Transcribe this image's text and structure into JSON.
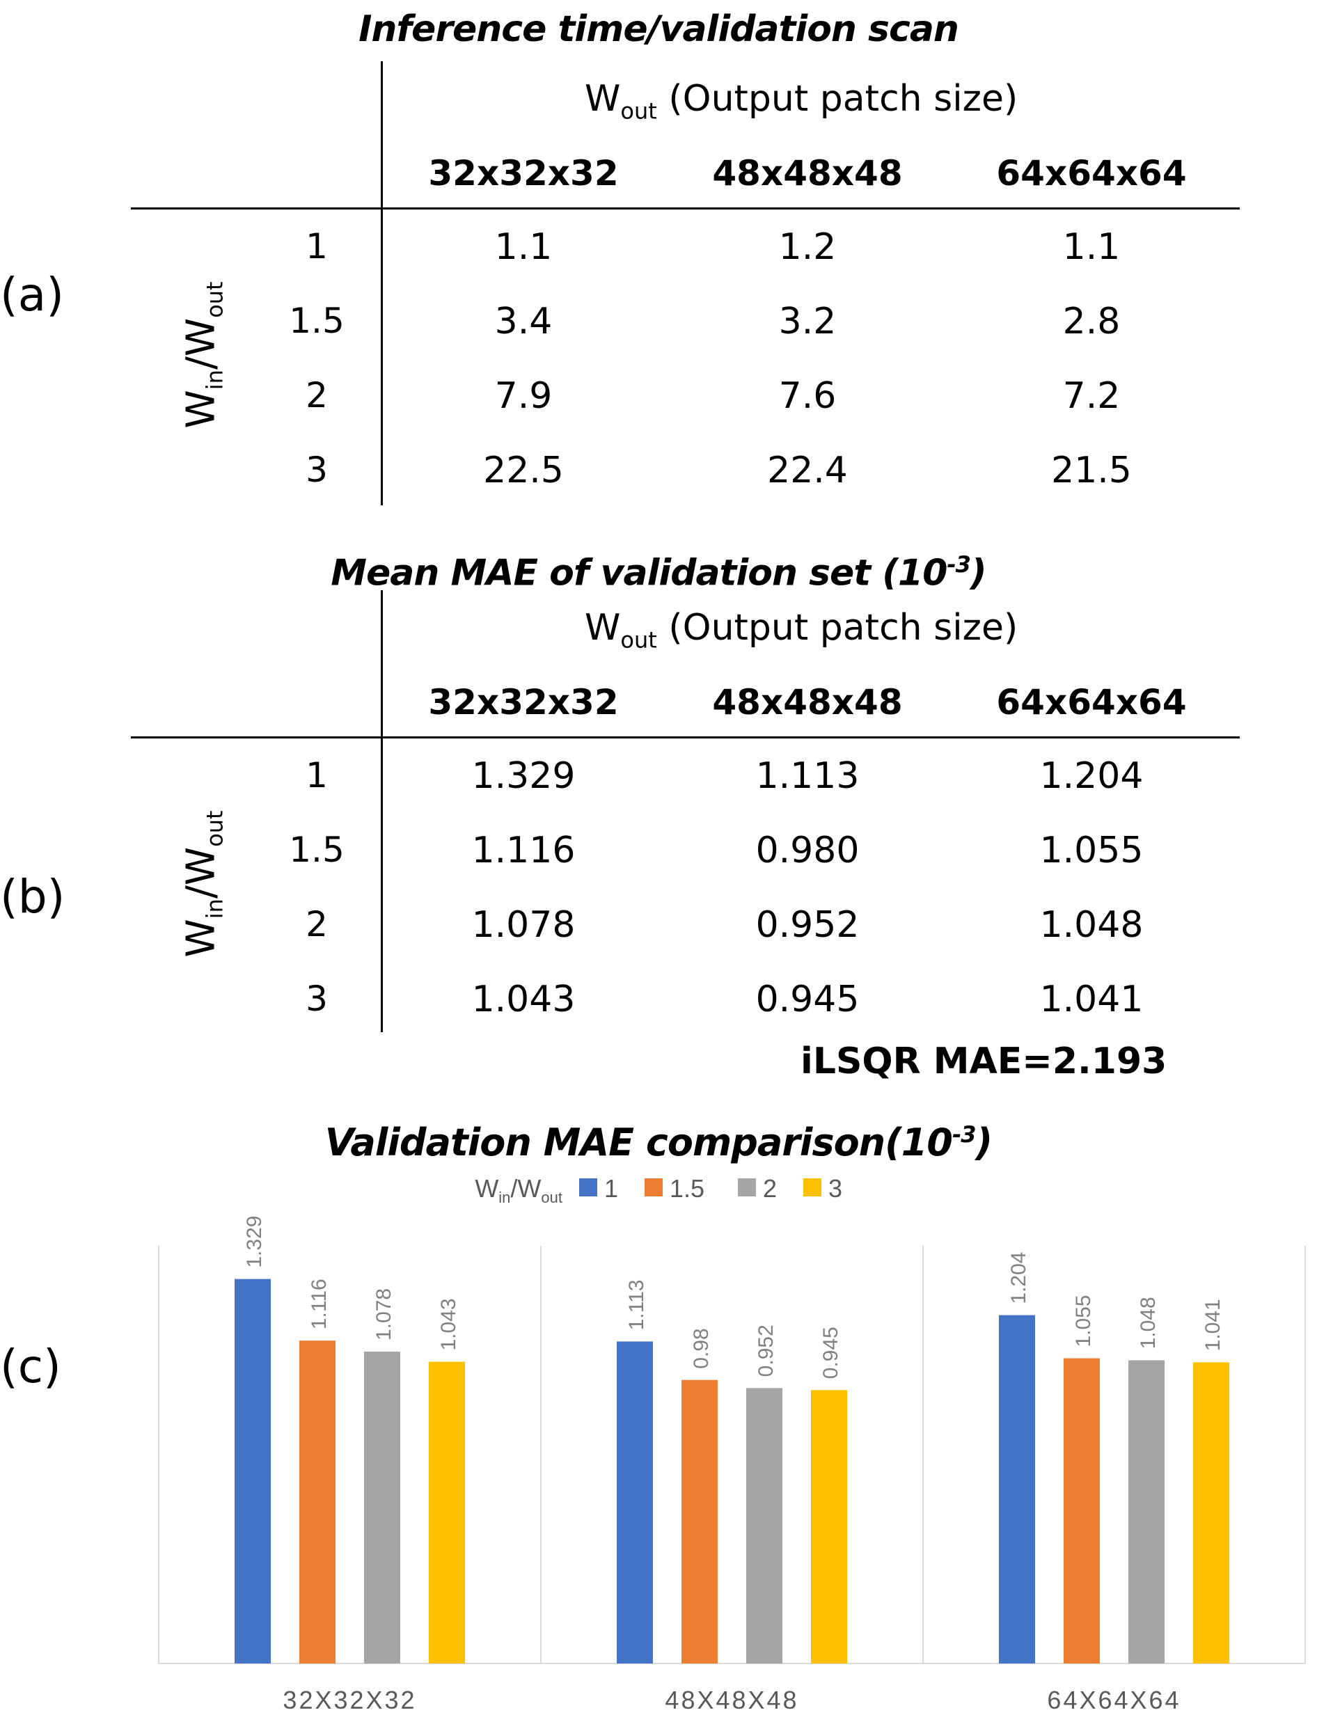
{
  "panels": {
    "a": "(a)",
    "b": "(b)",
    "c": "(c)"
  },
  "table_a": {
    "title": "Inference time/validation scan",
    "wout_main": "W",
    "wout_sub": "out",
    "wout_rest": " (Output patch size)",
    "win_main": "W",
    "win_sub1": "in",
    "win_mid": "/W",
    "win_sub2": "out",
    "columns": [
      "32x32x32",
      "48x48x48",
      "64x64x64"
    ],
    "rows": [
      "1",
      "1.5",
      "2",
      "3"
    ],
    "cells": [
      [
        "1.1",
        "1.2",
        "1.1"
      ],
      [
        "3.4",
        "3.2",
        "2.8"
      ],
      [
        "7.9",
        "7.6",
        "7.2"
      ],
      [
        "22.5",
        "22.4",
        "21.5"
      ]
    ]
  },
  "table_b": {
    "title_main": "Mean MAE of validation set (10",
    "title_sup": "-3",
    "title_end": ")",
    "wout_main": "W",
    "wout_sub": "out",
    "wout_rest": " (Output patch size)",
    "win_main": "W",
    "win_sub1": "in",
    "win_mid": "/W",
    "win_sub2": "out",
    "columns": [
      "32x32x32",
      "48x48x48",
      "64x64x64"
    ],
    "rows": [
      "1",
      "1.5",
      "2",
      "3"
    ],
    "cells": [
      [
        "1.329",
        "1.113",
        "1.204"
      ],
      [
        "1.116",
        "0.980",
        "1.055"
      ],
      [
        "1.078",
        "0.952",
        "1.048"
      ],
      [
        "1.043",
        "0.945",
        "1.041"
      ]
    ],
    "footnote": "iLSQR MAE=2.193"
  },
  "chart_data": {
    "type": "bar",
    "title_main": "Validation MAE comparison(10",
    "title_sup": "-3",
    "title_end": ")",
    "legend_title_main": "W",
    "legend_title_sub1": "in",
    "legend_title_mid": "/W",
    "legend_title_sub2": "out",
    "legend_position": "top-center",
    "categories": [
      "32X32X32",
      "48X48X48",
      "64X64X64"
    ],
    "series": [
      {
        "name": "1",
        "color": "#4472C4",
        "values": [
          1.329,
          1.113,
          1.204
        ],
        "labels": [
          "1.329",
          "1.113",
          "1.204"
        ]
      },
      {
        "name": "1.5",
        "color": "#ED7D31",
        "values": [
          1.116,
          0.98,
          1.055
        ],
        "labels": [
          "1.116",
          "0.98",
          "1.055"
        ]
      },
      {
        "name": "2",
        "color": "#A5A5A5",
        "values": [
          1.078,
          0.952,
          1.048
        ],
        "labels": [
          "1.078",
          "0.952",
          "1.048"
        ]
      },
      {
        "name": "3",
        "color": "#FFC000",
        "values": [
          1.043,
          0.945,
          1.041
        ],
        "labels": [
          "1.043",
          "0.945",
          "1.041"
        ]
      }
    ],
    "ylim": [
      0,
      1.6
    ],
    "grid": false
  }
}
